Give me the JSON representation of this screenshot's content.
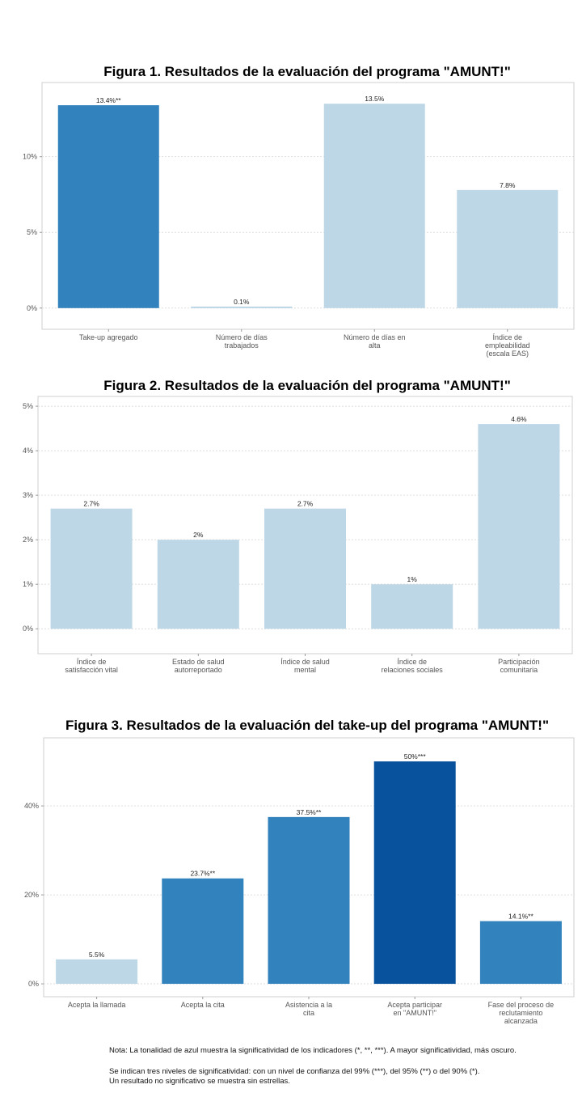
{
  "colors": {
    "ns": "#bdd7e7",
    "sig2": "#3182bd",
    "sig3": "#08519c"
  },
  "chart_data": [
    {
      "type": "bar",
      "title": "Figura 1. Resultados de la evaluación del programa \"AMUNT!\"",
      "categories": [
        "Take-up agregado",
        "Número de días\ntrabajados",
        "Número de días en\nalta",
        "Índice de\nempleabilidad\n(escala EAS)"
      ],
      "values": [
        13.4,
        0.1,
        13.5,
        7.8
      ],
      "labels": [
        "13.4%**",
        "0.1%",
        "13.5%",
        "7.8%"
      ],
      "significance": [
        "sig2",
        "ns",
        "ns",
        "ns"
      ],
      "yticks": [
        0,
        5,
        10
      ],
      "ytick_labels": [
        "0%",
        "5%",
        "10%"
      ],
      "ylim": [
        -1.4,
        14.9
      ],
      "grid": true
    },
    {
      "type": "bar",
      "title": "Figura 2. Resultados de la evaluación del programa \"AMUNT!\"",
      "categories": [
        "Índice de\nsatisfacción vital",
        "Estado de salud\nautorreportado",
        "Índice de salud\nmental",
        "Índice de\nrelaciones sociales",
        "Participación\ncomunitaria"
      ],
      "values": [
        2.7,
        2.0,
        2.7,
        1.0,
        4.6
      ],
      "labels": [
        "2.7%",
        "2%",
        "2.7%",
        "1%",
        "4.6%"
      ],
      "significance": [
        "ns",
        "ns",
        "ns",
        "ns",
        "ns"
      ],
      "yticks": [
        0,
        1,
        2,
        3,
        4,
        5
      ],
      "ytick_labels": [
        "0%",
        "1%",
        "2%",
        "3%",
        "4%",
        "5%"
      ],
      "ylim": [
        -0.56,
        5.22
      ],
      "grid": true
    },
    {
      "type": "bar",
      "title": "Figura 3. Resultados de la evaluación del take-up del programa \"AMUNT!\"",
      "categories": [
        "Acepta la llamada",
        "Acepta la cita",
        "Asistencia a la\ncita",
        "Acepta participar\nen \"AMUNT!\"",
        "Fase del proceso de\nreclutamiento\nalcanzada"
      ],
      "values": [
        5.5,
        23.7,
        37.5,
        50,
        14.1
      ],
      "labels": [
        "5.5%",
        "23.7%**",
        "37.5%**",
        "50%***",
        "14.1%**"
      ],
      "significance": [
        "ns",
        "sig2",
        "sig2",
        "sig3",
        "sig2"
      ],
      "yticks": [
        0,
        20,
        40
      ],
      "ytick_labels": [
        "0%",
        "20%",
        "40%"
      ],
      "ylim": [
        -2.9,
        55.3
      ],
      "grid": true
    }
  ],
  "notes": {
    "line1": "Nota: La tonalidad de azul muestra la significatividad de los indicadores (*, **, ***). A mayor significatividad, más oscuro.",
    "line2": "Se indican tres niveles de significatividad: con un nivel de confianza del 99% (***), del 95% (**) o del 90% (*).",
    "line3": "Un resultado no significativo se muestra sin estrellas."
  }
}
